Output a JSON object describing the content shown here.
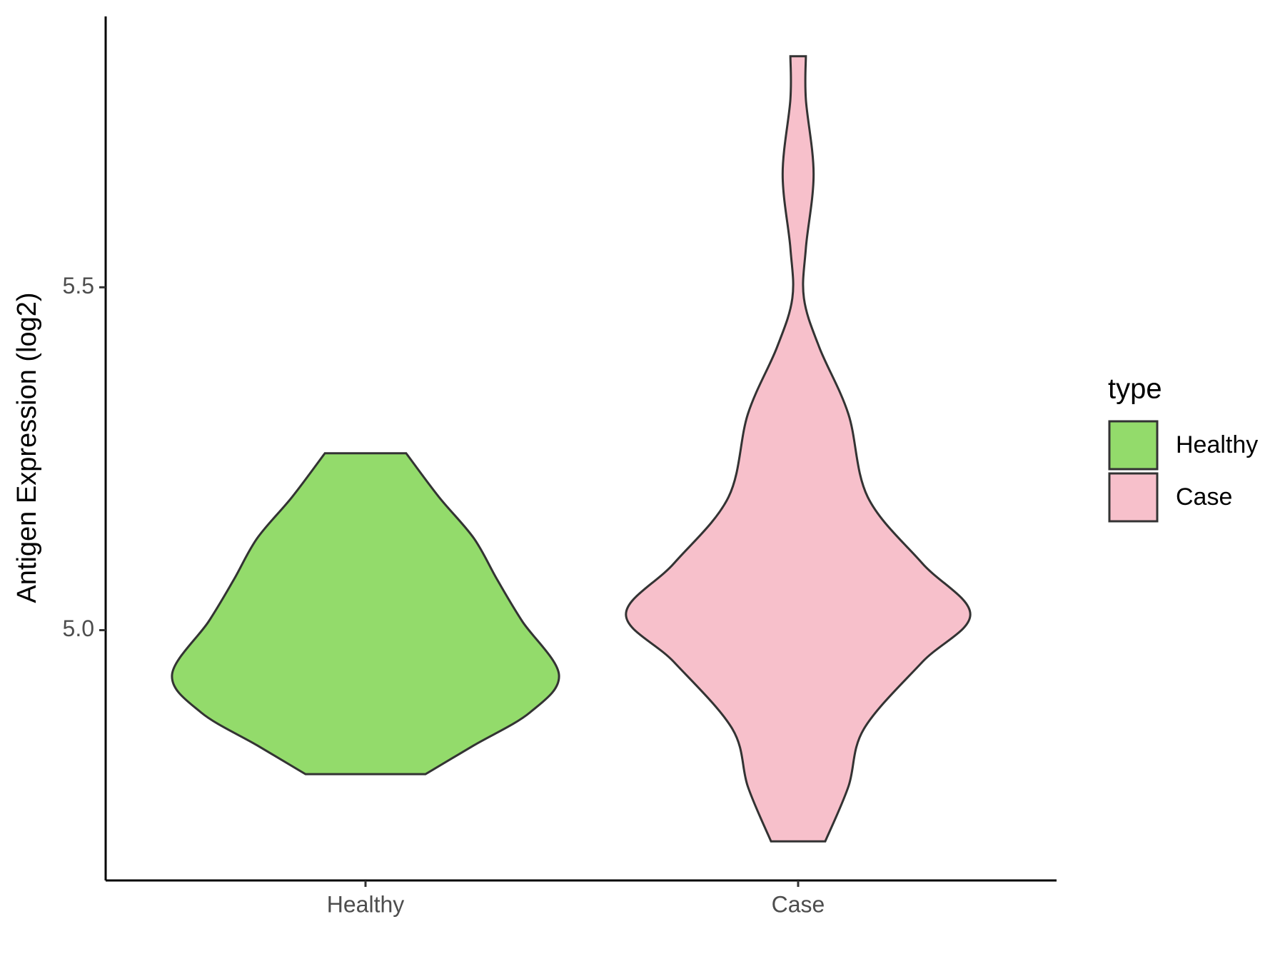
{
  "chart_data": {
    "type": "violin",
    "y_label": "Antigen Expression (log2)",
    "categories": [
      "Healthy",
      "Case"
    ],
    "ylim": [
      4.635,
      5.895
    ],
    "yticks": [
      {
        "value": 5,
        "label": "5.0"
      },
      5.5
    ],
    "legend_title": "type",
    "legend_position": "right",
    "grid": false,
    "series": [
      {
        "name": "Healthy",
        "color": "#93db6b",
        "y": [
          5.258,
          5.194,
          5.134,
          5.074,
          5.013,
          4.935,
          4.88,
          4.832,
          4.79
        ],
        "density": [
          0.21,
          0.38,
          0.56,
          0.68,
          0.81,
          1.0,
          0.85,
          0.56,
          0.31
        ]
      },
      {
        "name": "Case",
        "color": "#f7c0cb",
        "y": [
          5.837,
          5.774,
          5.665,
          5.557,
          5.484,
          5.412,
          5.315,
          5.194,
          5.098,
          5.023,
          4.953,
          4.856,
          4.772,
          4.692
        ],
        "density": [
          0.04,
          0.04,
          0.08,
          0.04,
          0.03,
          0.11,
          0.26,
          0.36,
          0.64,
          0.89,
          0.64,
          0.34,
          0.26,
          0.14
        ]
      }
    ]
  }
}
